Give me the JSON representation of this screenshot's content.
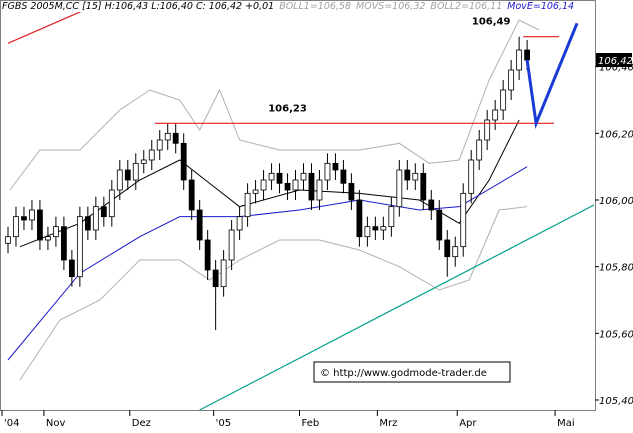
{
  "chart_data": {
    "type": "candlestick",
    "header": [
      {
        "text": "FGBS 2005M,CC [15] H:106,43 L:106,40 C: 106,42 +0,01",
        "color": "#000000"
      },
      {
        "text": "BOLL1=106,58",
        "color": "#a0a0a0"
      },
      {
        "text": "MOVS=106,32",
        "color": "#a0a0a0"
      },
      {
        "text": "BOLL2=106,11",
        "color": "#a0a0a0"
      },
      {
        "text": "MovE=106,14",
        "color": "#1a1acc"
      }
    ],
    "x": [
      2,
      4,
      6,
      8,
      10,
      12,
      14,
      16,
      18,
      20,
      22,
      24,
      26,
      28,
      30,
      32,
      34,
      36,
      38,
      40,
      42,
      44,
      46,
      48,
      50,
      52,
      54,
      56,
      58,
      60,
      62,
      64,
      66,
      68,
      70,
      72,
      74,
      76,
      78,
      80,
      82,
      84,
      86,
      88,
      90,
      92,
      94,
      96,
      98,
      100,
      102,
      104,
      106,
      108,
      110,
      112,
      114,
      116,
      118,
      120,
      122,
      124,
      126,
      128,
      130,
      132
    ],
    "open": [
      105.87,
      105.89,
      105.95,
      105.94,
      105.97,
      105.88,
      105.89,
      105.92,
      105.82,
      105.77,
      105.95,
      105.91,
      105.98,
      105.95,
      106.03,
      106.09,
      106.06,
      106.11,
      106.12,
      106.15,
      106.18,
      106.2,
      106.17,
      106.06,
      105.97,
      105.88,
      105.79,
      105.74,
      105.82,
      105.91,
      105.95,
      106.02,
      106.03,
      106.06,
      106.08,
      106.05,
      106.03,
      106.06,
      106.08,
      106.0,
      106.06,
      106.11,
      106.09,
      106.05,
      106.0,
      105.89,
      105.92,
      105.91,
      105.92,
      105.98,
      106.09,
      106.06,
      106.08,
      106.0,
      105.97,
      105.88,
      105.83,
      105.86,
      106.02,
      106.12,
      106.18,
      106.24,
      106.27,
      106.33,
      106.39,
      106.45
    ],
    "high": [
      105.92,
      105.98,
      105.98,
      106.0,
      106.0,
      105.92,
      105.95,
      105.95,
      105.85,
      105.98,
      105.98,
      106.01,
      106.01,
      106.06,
      106.12,
      106.12,
      106.14,
      106.15,
      106.18,
      106.21,
      106.23,
      106.23,
      106.2,
      106.09,
      106.0,
      105.91,
      105.82,
      105.85,
      105.94,
      105.98,
      106.05,
      106.06,
      106.09,
      106.11,
      106.11,
      106.08,
      106.09,
      106.11,
      106.11,
      106.09,
      106.14,
      106.14,
      106.12,
      106.08,
      106.03,
      105.95,
      105.95,
      105.95,
      106.01,
      106.12,
      106.12,
      106.11,
      106.11,
      106.03,
      106.0,
      105.91,
      105.89,
      106.05,
      106.15,
      106.21,
      106.27,
      106.3,
      106.36,
      106.42,
      106.49,
      106.48
    ],
    "low": [
      105.84,
      105.86,
      105.91,
      105.91,
      105.85,
      105.85,
      105.86,
      105.79,
      105.74,
      105.74,
      105.88,
      105.88,
      105.92,
      105.92,
      106.0,
      106.03,
      106.03,
      106.08,
      106.09,
      106.12,
      106.15,
      106.14,
      106.03,
      105.94,
      105.85,
      105.76,
      105.61,
      105.71,
      105.79,
      105.88,
      105.92,
      105.99,
      106.0,
      106.03,
      106.02,
      106.0,
      106.0,
      106.03,
      105.97,
      105.97,
      106.03,
      106.06,
      106.02,
      105.97,
      105.86,
      105.86,
      105.88,
      105.88,
      105.89,
      105.95,
      106.03,
      106.03,
      105.97,
      105.94,
      105.85,
      105.77,
      105.8,
      105.83,
      105.99,
      106.09,
      106.15,
      106.21,
      106.24,
      106.3,
      106.36,
      106.39
    ],
    "close": [
      105.89,
      105.95,
      105.94,
      105.97,
      105.88,
      105.89,
      105.92,
      105.82,
      105.77,
      105.95,
      105.91,
      105.98,
      105.95,
      106.03,
      106.09,
      106.06,
      106.11,
      106.12,
      106.15,
      106.18,
      106.2,
      106.17,
      106.06,
      105.97,
      105.88,
      105.79,
      105.74,
      105.82,
      105.91,
      105.95,
      106.02,
      106.03,
      106.06,
      106.08,
      106.05,
      106.03,
      106.06,
      106.08,
      106.0,
      106.06,
      106.11,
      106.09,
      106.05,
      106.0,
      105.89,
      105.92,
      105.91,
      105.92,
      105.98,
      106.09,
      106.06,
      106.08,
      106.0,
      105.97,
      105.88,
      105.83,
      105.86,
      106.02,
      106.12,
      106.18,
      106.24,
      106.27,
      106.33,
      106.39,
      106.45,
      106.42
    ],
    "color": "#000000",
    "overlays": [
      {
        "color": "#b0b0b0",
        "x": [
          2.5,
          10,
          20,
          30,
          37.5,
          45,
          50,
          55,
          60,
          70,
          80,
          90,
          100,
          107.5,
          115,
          122.5,
          130,
          135
        ],
        "values": [
          106.03,
          106.15,
          106.15,
          106.27,
          106.33,
          106.3,
          106.21,
          106.33,
          106.18,
          106.15,
          106.15,
          106.15,
          106.17,
          106.11,
          106.12,
          106.36,
          106.54,
          106.51
        ]
      },
      {
        "color": "#b0b0b0",
        "x": [
          5,
          15,
          25,
          35,
          45,
          52.5,
          60,
          70,
          80,
          90,
          100,
          110,
          117.5,
          125,
          132
        ],
        "values": [
          105.46,
          105.64,
          105.7,
          105.82,
          105.82,
          105.76,
          105.82,
          105.88,
          105.88,
          105.85,
          105.8,
          105.73,
          105.76,
          105.97,
          105.98
        ]
      },
      {
        "color": "#000000",
        "x": [
          5,
          20,
          35,
          45,
          52.5,
          60,
          75,
          90,
          105,
          115,
          122.5,
          130
        ],
        "values": [
          105.86,
          105.93,
          106.06,
          106.12,
          106.05,
          105.98,
          106.03,
          106.02,
          106.0,
          105.93,
          106.06,
          106.24
        ]
      },
      {
        "color": "#1a1acc",
        "x": [
          2,
          20,
          35,
          45,
          60,
          75,
          90,
          105,
          115,
          125,
          132
        ],
        "values": [
          105.52,
          105.78,
          105.89,
          105.95,
          105.95,
          105.97,
          106.0,
          105.97,
          105.98,
          106.05,
          106.1
        ]
      }
    ],
    "lines": [
      {
        "color": "#e02020",
        "x": [
          38.75,
          138.75
        ],
        "values": [
          106.23,
          106.23
        ]
      },
      {
        "color": "#e02020",
        "x": [
          131,
          140
        ],
        "values": [
          106.49,
          106.49
        ]
      },
      {
        "color": "#e02020",
        "x": [
          2,
          25
        ],
        "values": [
          106.47,
          106.59
        ]
      },
      {
        "color": "#00a08a",
        "x": [
          50,
          148.75
        ],
        "values": [
          105.37,
          105.985
        ]
      },
      {
        "color": "#1a3ad8",
        "x": [
          132,
          134.25,
          144.5
        ],
        "values": [
          106.42,
          106.23,
          106.53
        ]
      }
    ],
    "annotations": [
      {
        "label": "106,23",
        "value": 106.23,
        "x": 72
      },
      {
        "label": "106,49",
        "value": 106.49,
        "x": 123
      }
    ],
    "copyright": "© http://www.godmode-trader.de",
    "last_price": {
      "value": 106.42,
      "label": "106,42"
    },
    "xlim": [
      0,
      149
    ],
    "ylim": [
      105.37,
      106.6
    ],
    "xticks": [
      {
        "value": 0.5,
        "label": "'04"
      },
      {
        "value": 11,
        "label": "Nov"
      },
      {
        "value": 32.5,
        "label": "Dez"
      },
      {
        "value": 53.5,
        "label": "'05"
      },
      {
        "value": 75,
        "label": "Feb"
      },
      {
        "value": 94.5,
        "label": "Mrz"
      },
      {
        "value": 114.5,
        "label": "Apr"
      },
      {
        "value": 139,
        "label": "Mai"
      }
    ],
    "yticks": [
      {
        "value": 105.4,
        "label": "105,40"
      },
      {
        "value": 105.6,
        "label": "105,60"
      },
      {
        "value": 105.8,
        "label": "105,80"
      },
      {
        "value": 106.0,
        "label": "106,00"
      },
      {
        "value": 106.2,
        "label": "106,20"
      },
      {
        "value": 106.4,
        "label": "106,40"
      }
    ]
  }
}
